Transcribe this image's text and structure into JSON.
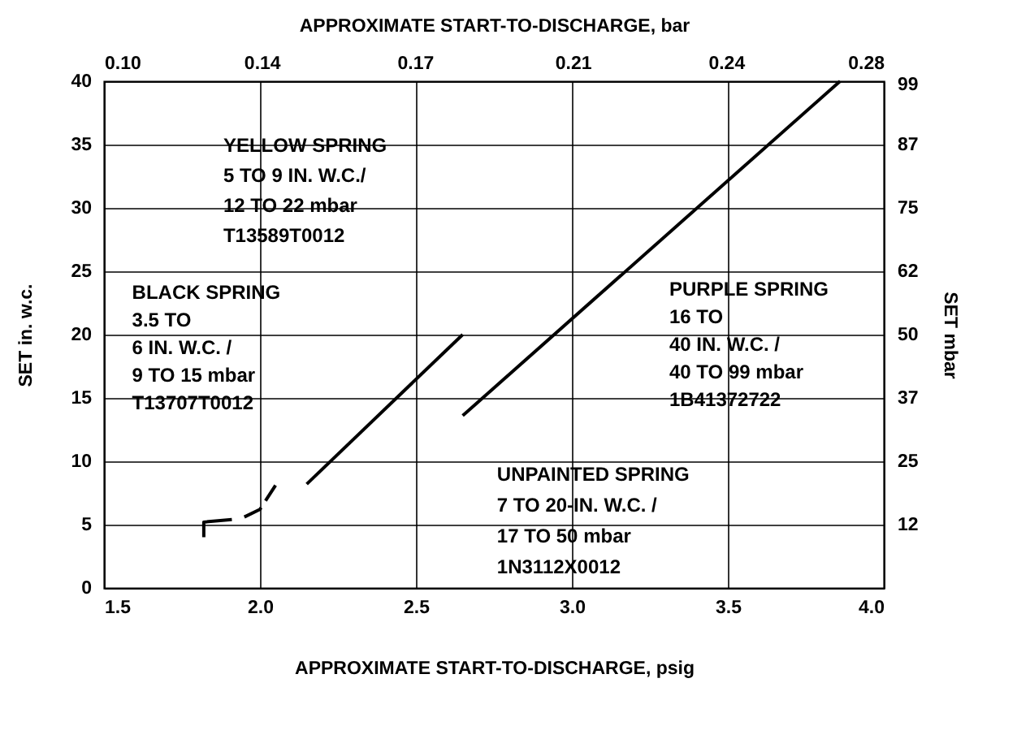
{
  "chart_data": {
    "type": "line",
    "xlabel": "APPROXIMATE   START-TO-DISCHARGE, psig",
    "ylabel": "SET in. w.c.",
    "x2label": "APPROXIMATE   START-TO-DISCHARGE, bar",
    "y2label": "SET mbar",
    "xlim": [
      1.5,
      4.0
    ],
    "xticks": [
      1.5,
      {
        "value": 2.0,
        "label": "2.0"
      },
      2.5,
      {
        "value": 3.0,
        "label": "3.0"
      },
      3.5,
      {
        "value": 4.0,
        "label": "4.0"
      }
    ],
    "ylim": [
      0,
      40
    ],
    "yticks": [
      0,
      5,
      10,
      15,
      20,
      25,
      30,
      35,
      40
    ],
    "x2lim": [
      0.103,
      0.276
    ],
    "x2ticks": [
      {
        "value": 0.103,
        "label": "0.10"
      },
      {
        "value": 0.138,
        "label": "0.14"
      },
      {
        "value": 0.172,
        "label": "0.17"
      },
      {
        "value": 0.207,
        "label": "0.21"
      },
      {
        "value": 0.241,
        "label": "0.24"
      },
      {
        "value": 0.276,
        "label": "0.28"
      }
    ],
    "y2lim": [
      0,
      99.6
    ],
    "y2ticks": [
      {
        "value": 12.45,
        "label": "12"
      },
      {
        "value": 24.9,
        "label": "25"
      },
      {
        "value": 37.35,
        "label": "37"
      },
      {
        "value": 49.8,
        "label": "50"
      },
      {
        "value": 62.25,
        "label": "62"
      },
      {
        "value": 74.7,
        "label": "75"
      },
      {
        "value": 87.15,
        "label": "87"
      },
      99
    ],
    "grid": true,
    "marker": "none",
    "series": [
      {
        "color": "#000000",
        "x": [
          1.82,
          1.82,
          1.91
        ],
        "values": [
          4.0,
          5.2,
          5.4
        ],
        "line_style": "solid"
      },
      {
        "color": "#000000",
        "x": [
          1.95,
          2.0,
          2.05
        ],
        "values": [
          5.6,
          6.2,
          8.1
        ],
        "line_style": "dashed"
      },
      {
        "color": "#000000",
        "x": [
          2.15,
          2.65
        ],
        "values": [
          8.2,
          20.0
        ],
        "line_style": "solid"
      },
      {
        "color": "#000000",
        "x": [
          2.65,
          3.86
        ],
        "values": [
          13.6,
          40.0
        ],
        "line_style": "solid"
      }
    ],
    "annotations": [
      "YELLOW SPRING\n5 TO 9 IN. W.C./\n12 TO 22 mbar\nT13589T0012",
      "BLACK SPRING\n3.5 TO\n6 IN. W.C. /\n9 TO 15 mbar\nT13707T0012",
      "PURPLE SPRING\n16 TO\n40 IN. W.C. /\n40 TO 99 mbar\n1B41372722",
      "UNPAINTED SPRING\n7 TO 20-IN. W.C. /\n17 TO 50 mbar\n1N3112X0012"
    ]
  }
}
